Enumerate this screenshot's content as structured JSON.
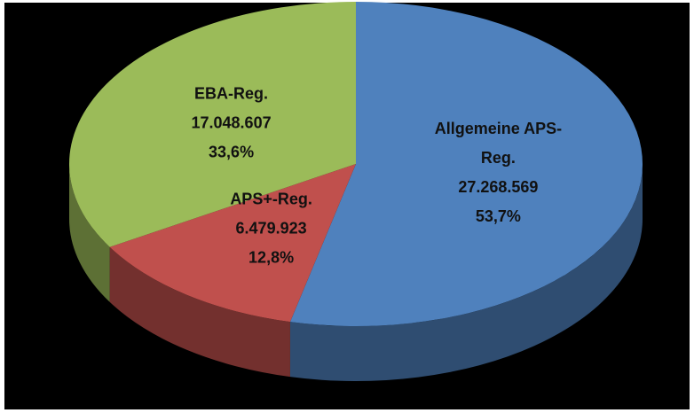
{
  "chart_data": {
    "type": "pie3d",
    "categories": [
      "Allgemeine APS-Reg.",
      "APS+-Reg.",
      "EBA-Reg."
    ],
    "values": [
      27268569,
      6479923,
      17048607
    ],
    "value_labels": [
      "27.268.569",
      "6.479.923",
      "17.048.607"
    ],
    "percents": [
      53.7,
      12.8,
      33.6
    ],
    "percent_labels": [
      "53,7%",
      "12,8%",
      "33,6%"
    ],
    "colors": [
      "#4f81bd",
      "#c0504d",
      "#9bbb59"
    ]
  }
}
